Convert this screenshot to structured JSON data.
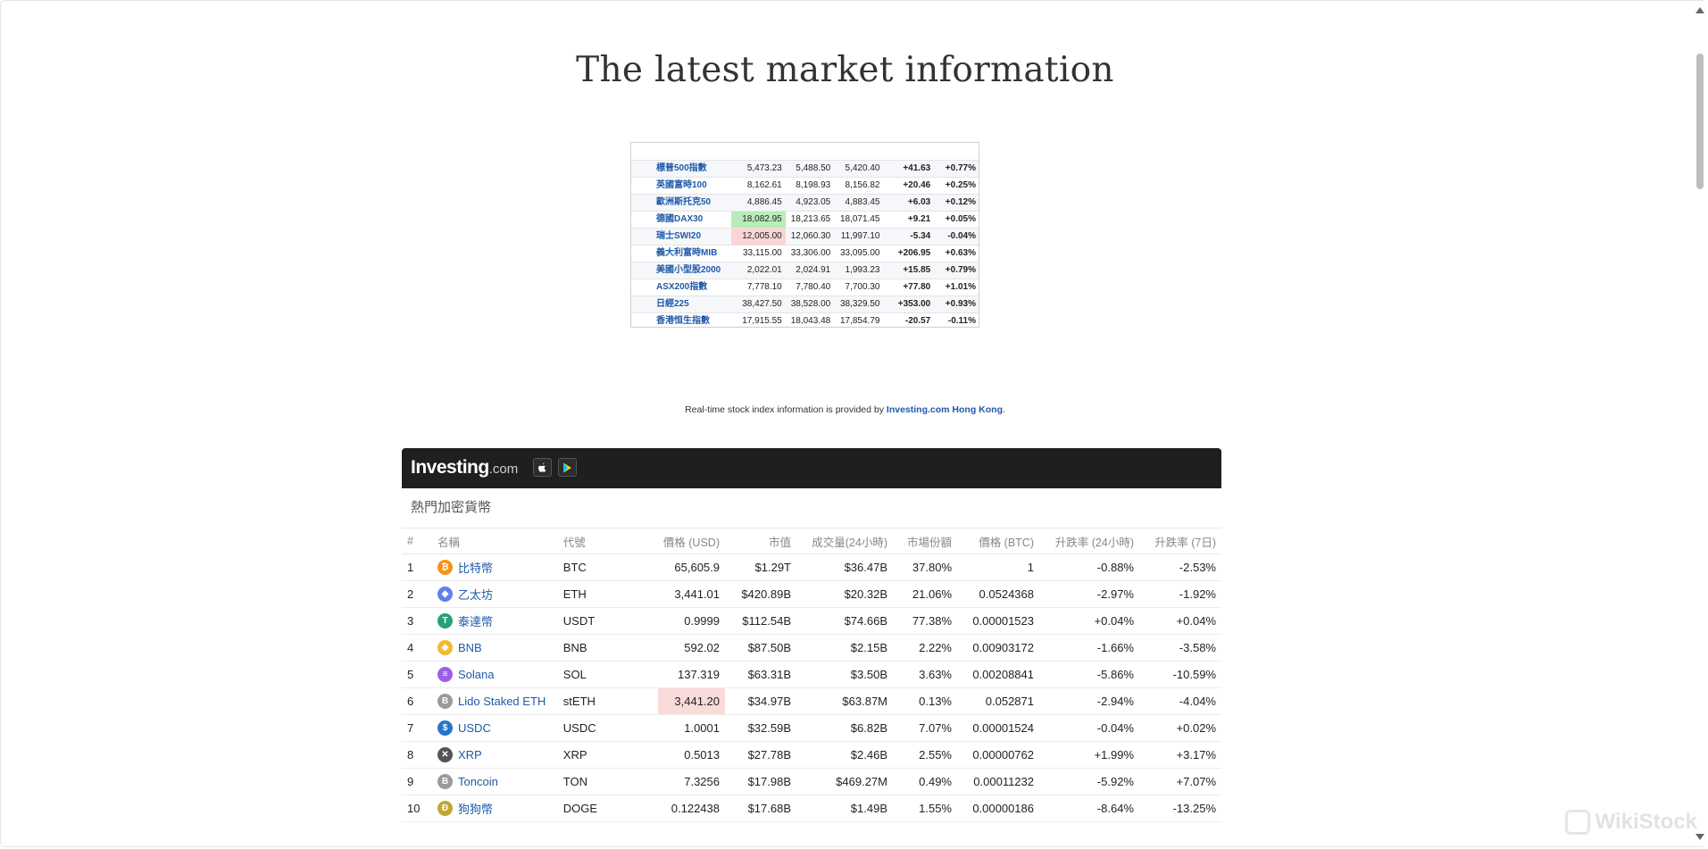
{
  "page": {
    "title": "The latest market information",
    "credit_prefix": "Real-time stock index information is provided by ",
    "credit_link": "Investing.com Hong Kong",
    "credit_suffix": "."
  },
  "indices": [
    {
      "name": "標普500指數",
      "v1": "5,473.23",
      "v2": "5,488.50",
      "v3": "5,420.40",
      "chg": "+41.63",
      "pct": "+0.77%",
      "dir": "pos",
      "hl": ""
    },
    {
      "name": "英國富時100",
      "v1": "8,162.61",
      "v2": "8,198.93",
      "v3": "8,156.82",
      "chg": "+20.46",
      "pct": "+0.25%",
      "dir": "pos",
      "hl": ""
    },
    {
      "name": "歐洲斯托克50",
      "v1": "4,886.45",
      "v2": "4,923.05",
      "v3": "4,883.45",
      "chg": "+6.03",
      "pct": "+0.12%",
      "dir": "pos",
      "hl": ""
    },
    {
      "name": "德國DAX30",
      "v1": "18,082.95",
      "v2": "18,213.65",
      "v3": "18,071.45",
      "chg": "+9.21",
      "pct": "+0.05%",
      "dir": "pos",
      "hl": "green"
    },
    {
      "name": "瑞士SWI20",
      "v1": "12,005.00",
      "v2": "12,060.30",
      "v3": "11,997.10",
      "chg": "-5.34",
      "pct": "-0.04%",
      "dir": "neg",
      "hl": "red"
    },
    {
      "name": "義大利富時MIB",
      "v1": "33,115.00",
      "v2": "33,306.00",
      "v3": "33,095.00",
      "chg": "+206.95",
      "pct": "+0.63%",
      "dir": "pos",
      "hl": ""
    },
    {
      "name": "美國小型股2000",
      "v1": "2,022.01",
      "v2": "2,024.91",
      "v3": "1,993.23",
      "chg": "+15.85",
      "pct": "+0.79%",
      "dir": "pos",
      "hl": ""
    },
    {
      "name": "ASX200指數",
      "v1": "7,778.10",
      "v2": "7,780.40",
      "v3": "7,700.30",
      "chg": "+77.80",
      "pct": "+1.01%",
      "dir": "pos",
      "hl": ""
    },
    {
      "name": "日經225",
      "v1": "38,427.50",
      "v2": "38,528.00",
      "v3": "38,329.50",
      "chg": "+353.00",
      "pct": "+0.93%",
      "dir": "pos",
      "hl": ""
    },
    {
      "name": "香港恒生指數",
      "v1": "17,915.55",
      "v2": "18,043.48",
      "v3": "17,854.79",
      "chg": "-20.57",
      "pct": "-0.11%",
      "dir": "neg",
      "hl": ""
    }
  ],
  "crypto": {
    "logo_main": "Investing",
    "logo_suffix": ".com",
    "apple_icon": "apple-icon",
    "play_icon": "play-store-icon",
    "section_title": "熱門加密貨幣",
    "headers": [
      "#",
      "名稱",
      "代號",
      "價格 (USD)",
      "市值",
      "成交量(24小時)",
      "市場份額",
      "價格 (BTC)",
      "升跌率 (24小時)",
      "升跌率 (7日)"
    ],
    "rows": [
      {
        "rank": "1",
        "name": "比特幣",
        "symbol": "BTC",
        "price": "65,605.9",
        "mcap": "$1.29T",
        "vol": "$36.47B",
        "share": "37.80%",
        "btc": "1",
        "ch24": "-0.88%",
        "ch7": "-2.53%",
        "icon": "bitcoin-icon",
        "color": "#f7931a",
        "glyph": "₿",
        "hl": false
      },
      {
        "rank": "2",
        "name": "乙太坊",
        "symbol": "ETH",
        "price": "3,441.01",
        "mcap": "$420.89B",
        "vol": "$20.32B",
        "share": "21.06%",
        "btc": "0.0524368",
        "ch24": "-2.97%",
        "ch7": "-1.92%",
        "icon": "ethereum-icon",
        "color": "#627eea",
        "glyph": "◆",
        "hl": false
      },
      {
        "rank": "3",
        "name": "泰達幣",
        "symbol": "USDT",
        "price": "0.9999",
        "mcap": "$112.54B",
        "vol": "$74.66B",
        "share": "77.38%",
        "btc": "0.00001523",
        "ch24": "+0.04%",
        "ch7": "+0.04%",
        "icon": "tether-icon",
        "color": "#26a17b",
        "glyph": "T",
        "hl": false
      },
      {
        "rank": "4",
        "name": "BNB",
        "symbol": "BNB",
        "price": "592.02",
        "mcap": "$87.50B",
        "vol": "$2.15B",
        "share": "2.22%",
        "btc": "0.00903172",
        "ch24": "-1.66%",
        "ch7": "-3.58%",
        "icon": "bnb-icon",
        "color": "#f3ba2f",
        "glyph": "◈",
        "hl": false
      },
      {
        "rank": "5",
        "name": "Solana",
        "symbol": "SOL",
        "price": "137.319",
        "mcap": "$63.31B",
        "vol": "$3.50B",
        "share": "3.63%",
        "btc": "0.00208841",
        "ch24": "-5.86%",
        "ch7": "-10.59%",
        "icon": "solana-icon",
        "color": "#9c5fe6",
        "glyph": "≡",
        "hl": false
      },
      {
        "rank": "6",
        "name": "Lido Staked ETH",
        "symbol": "stETH",
        "price": "3,441.20",
        "mcap": "$34.97B",
        "vol": "$63.87M",
        "share": "0.13%",
        "btc": "0.052871",
        "ch24": "-2.94%",
        "ch7": "-4.04%",
        "icon": "lido-icon",
        "color": "#9a9a9a",
        "glyph": "B",
        "hl": true
      },
      {
        "rank": "7",
        "name": "USDC",
        "symbol": "USDC",
        "price": "1.0001",
        "mcap": "$32.59B",
        "vol": "$6.82B",
        "share": "7.07%",
        "btc": "0.00001524",
        "ch24": "-0.04%",
        "ch7": "+0.02%",
        "icon": "usdc-icon",
        "color": "#2775ca",
        "glyph": "$",
        "hl": false
      },
      {
        "rank": "8",
        "name": "XRP",
        "symbol": "XRP",
        "price": "0.5013",
        "mcap": "$27.78B",
        "vol": "$2.46B",
        "share": "2.55%",
        "btc": "0.00000762",
        "ch24": "+1.99%",
        "ch7": "+3.17%",
        "icon": "xrp-icon",
        "color": "#555555",
        "glyph": "✕",
        "hl": false
      },
      {
        "rank": "9",
        "name": "Toncoin",
        "symbol": "TON",
        "price": "7.3256",
        "mcap": "$17.98B",
        "vol": "$469.27M",
        "share": "0.49%",
        "btc": "0.00011232",
        "ch24": "-5.92%",
        "ch7": "+7.07%",
        "icon": "toncoin-icon",
        "color": "#9a9a9a",
        "glyph": "B",
        "hl": false
      },
      {
        "rank": "10",
        "name": "狗狗幣",
        "symbol": "DOGE",
        "price": "0.122438",
        "mcap": "$17.68B",
        "vol": "$1.49B",
        "share": "1.55%",
        "btc": "0.00000186",
        "ch24": "-8.64%",
        "ch7": "-13.25%",
        "icon": "dogecoin-icon",
        "color": "#c2a633",
        "glyph": "Ð",
        "hl": false
      }
    ]
  },
  "watermark": {
    "text": "WikiStock"
  }
}
